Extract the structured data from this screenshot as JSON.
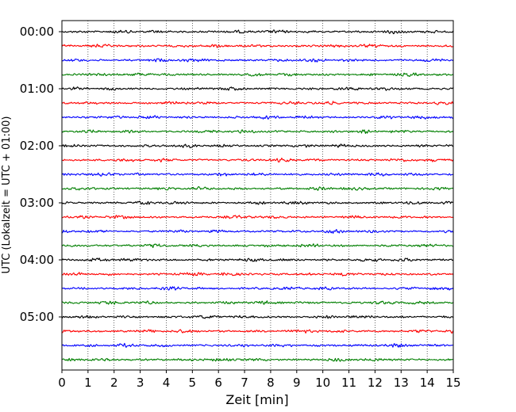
{
  "chart_data": {
    "type": "line",
    "title": "",
    "xlabel": "Zeit  [min]",
    "ylabel": "UTC (Lokalzeit = UTC + 01:00)",
    "xlim": [
      0,
      15
    ],
    "x_ticks": [
      "0",
      "1",
      "2",
      "3",
      "4",
      "5",
      "6",
      "7",
      "8",
      "9",
      "10",
      "11",
      "12",
      "13",
      "14",
      "15"
    ],
    "y_tick_labels": [
      "00:00",
      "01:00",
      "02:00",
      "03:00",
      "04:00",
      "05:00"
    ],
    "grid": "vertical dotted lines at each minute",
    "legend": "none",
    "trace_interval_minutes": 15,
    "series_colors": [
      "#000000",
      "#ff0000",
      "#0000ff",
      "#007f00"
    ],
    "rows": [
      {
        "start": "00:00",
        "color": "#000000"
      },
      {
        "start": "00:15",
        "color": "#ff0000"
      },
      {
        "start": "00:30",
        "color": "#0000ff"
      },
      {
        "start": "00:45",
        "color": "#007f00"
      },
      {
        "start": "01:00",
        "color": "#000000"
      },
      {
        "start": "01:15",
        "color": "#ff0000"
      },
      {
        "start": "01:30",
        "color": "#0000ff"
      },
      {
        "start": "01:45",
        "color": "#007f00"
      },
      {
        "start": "02:00",
        "color": "#000000"
      },
      {
        "start": "02:15",
        "color": "#ff0000"
      },
      {
        "start": "02:30",
        "color": "#0000ff"
      },
      {
        "start": "02:45",
        "color": "#007f00"
      },
      {
        "start": "03:00",
        "color": "#000000"
      },
      {
        "start": "03:15",
        "color": "#ff0000"
      },
      {
        "start": "03:30",
        "color": "#0000ff"
      },
      {
        "start": "03:45",
        "color": "#007f00"
      },
      {
        "start": "04:00",
        "color": "#000000"
      },
      {
        "start": "04:15",
        "color": "#ff0000"
      },
      {
        "start": "04:30",
        "color": "#0000ff"
      },
      {
        "start": "04:45",
        "color": "#007f00"
      },
      {
        "start": "05:00",
        "color": "#000000"
      },
      {
        "start": "05:15",
        "color": "#ff0000"
      },
      {
        "start": "05:30",
        "color": "#0000ff"
      },
      {
        "start": "05:45",
        "color": "#007f00"
      }
    ]
  }
}
